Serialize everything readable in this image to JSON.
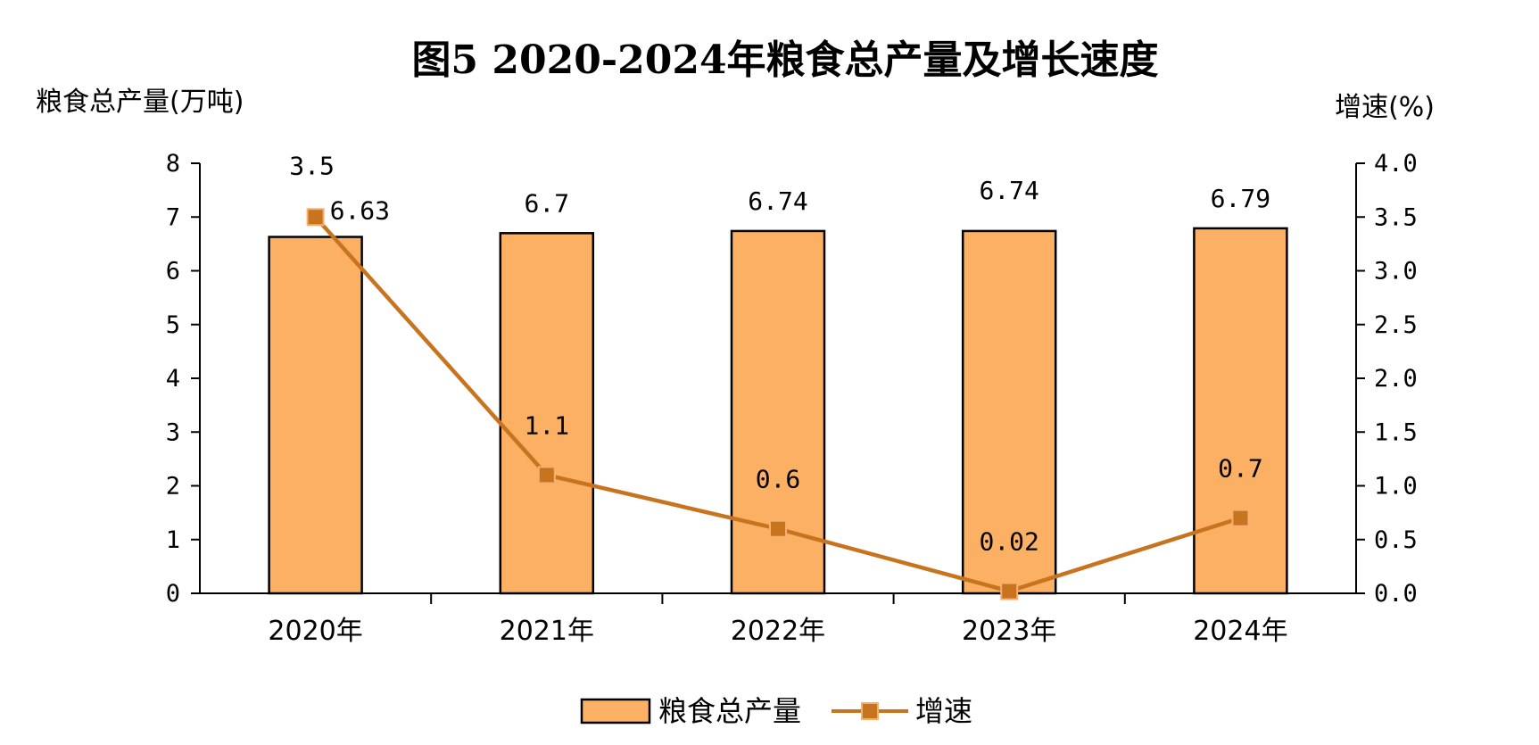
{
  "chart_data": {
    "type": "bar",
    "title": "图5 2020-2024年粮食总产量及增长速度",
    "ylabel": "粮食总产量(万吨)",
    "y2label": "增速(%)",
    "categories": [
      "2020年",
      "2021年",
      "2022年",
      "2023年",
      "2024年"
    ],
    "ylim": [
      0,
      8
    ],
    "yticks": [
      "0",
      "1",
      "2",
      "3",
      "4",
      "5",
      "6",
      "7",
      "8"
    ],
    "y2lim": [
      0,
      4
    ],
    "y2ticks": [
      "0.0",
      "0.5",
      "1.0",
      "1.5",
      "2.0",
      "2.5",
      "3.0",
      "3.5",
      "4.0"
    ],
    "series": [
      {
        "name": "粮食总产量",
        "type": "bar",
        "axis": "left",
        "values": [
          6.63,
          6.7,
          6.74,
          6.74,
          6.79
        ],
        "labels": [
          "6.63",
          "6.7",
          "6.74",
          "6.74",
          "6.79"
        ],
        "color": "#FCB064"
      },
      {
        "name": "增速",
        "type": "line",
        "axis": "right",
        "values": [
          3.5,
          1.1,
          0.6,
          0.02,
          0.7
        ],
        "labels": [
          "3.5",
          "1.1",
          "0.6",
          "0.02",
          "0.7"
        ],
        "color": "#C8731E"
      }
    ],
    "grid": false,
    "legend": "bottom"
  }
}
